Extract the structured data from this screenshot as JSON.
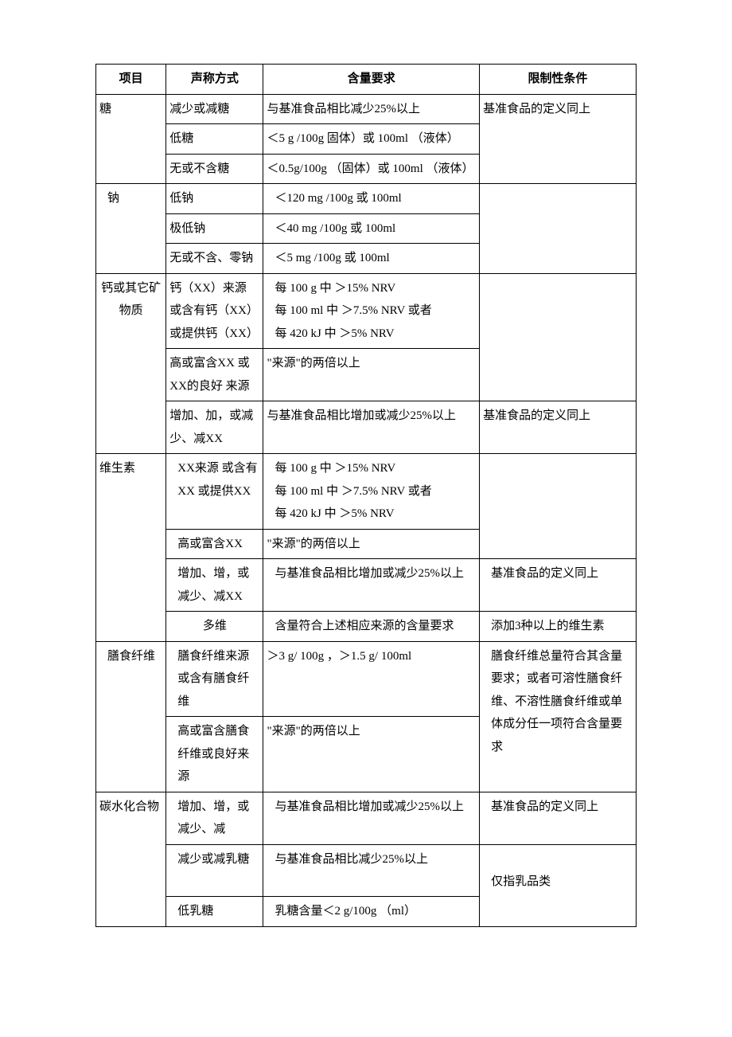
{
  "headers": {
    "c1": "项目",
    "c2": "声称方式",
    "c3": "含量要求",
    "c4": "限制性条件"
  },
  "sugar": {
    "name": "糖",
    "r1c2": "减少或减糖",
    "r1c3": "与基准食品相比减少25%以上",
    "r1c4": "基准食品的定义同上",
    "r2c2": "低糖",
    "r2c3": "＜5 g /100g 固体）或 100ml （液体）",
    "r3c2": "无或不含糖",
    "r3c3": "＜0.5g/100g （固体）或 100ml （液体）"
  },
  "sodium": {
    "name": "钠",
    "r1c2": "低钠",
    "r1c3": "＜120 mg /100g 或 100ml",
    "r2c2": "极低钠",
    "r2c3": "＜40 mg /100g 或 100ml",
    "r3c2": "无或不含、零钠",
    "r3c3": "＜5 mg /100g 或 100ml"
  },
  "calcium": {
    "name": "钙或其它矿物质",
    "r1c2": "钙（XX）来源 或含有钙（XX）或提供钙（XX）",
    "r1c3a": "每 100 g 中 ＞15% NRV",
    "r1c3b": "每 100 ml 中 ＞7.5% NRV 或者",
    "r1c3c": "每 420 kJ 中 ＞5% NRV",
    "r2c2": "高或富含XX 或XX的良好 来源",
    "r2c3": "\"来源\"的两倍以上",
    "r3c2": "增加、加，或减少、减XX",
    "r3c3": "与基准食品相比增加或减少25%以上",
    "r3c4": "基准食品的定义同上"
  },
  "vitamin": {
    "name": "维生素",
    "r1c2": "XX来源 或含有XX 或提供XX",
    "r1c3a": "每 100 g 中 ＞15% NRV",
    "r1c3b": "每 100 ml 中 ＞7.5% NRV 或者",
    "r1c3c": "每 420 kJ 中 ＞5% NRV",
    "r2c2": "高或富含XX",
    "r2c3": "\"来源\"的两倍以上",
    "r3c2": "增加、增，或减少、减XX",
    "r3c3": "与基准食品相比增加或减少25%以上",
    "r3c4": "基准食品的定义同上",
    "r4c2": "多维",
    "r4c3": "含量符合上述相应来源的含量要求",
    "r4c4": "添加3种以上的维生素"
  },
  "fiber": {
    "name": "膳食纤维",
    "r1c2": "膳食纤维来源或含有膳食纤维",
    "r1c3": "＞3 g/ 100g ，＞1.5 g/ 100ml",
    "r1c4": "膳食纤维总量符合其含量要求；或者可溶性膳食纤维、不溶性膳食纤维或单体成分任一项符合含量要求",
    "r2c2": "高或富含膳食纤维或良好来源",
    "r2c3": "\"来源\"的两倍以上"
  },
  "carb": {
    "name": "碳水化合物",
    "r1c2": "增加、增，或减少、减",
    "r1c3": "与基准食品相比增加或减少25%以上",
    "r1c4": "基准食品的定义同上",
    "r2c2": "减少或减乳糖",
    "r2c3": "与基准食品相比减少25%以上",
    "r2c4": "仅指乳品类",
    "r3c2": "低乳糖",
    "r3c3": "乳糖含量＜2 g/100g （ml）"
  }
}
